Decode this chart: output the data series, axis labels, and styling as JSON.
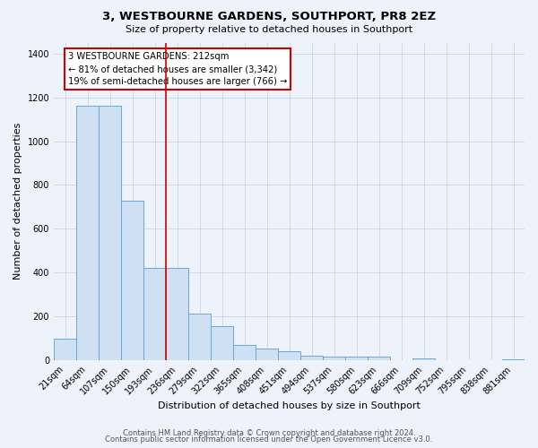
{
  "title": "3, WESTBOURNE GARDENS, SOUTHPORT, PR8 2EZ",
  "subtitle": "Size of property relative to detached houses in Southport",
  "xlabel": "Distribution of detached houses by size in Southport",
  "ylabel": "Number of detached properties",
  "bar_labels": [
    "21sqm",
    "64sqm",
    "107sqm",
    "150sqm",
    "193sqm",
    "236sqm",
    "279sqm",
    "322sqm",
    "365sqm",
    "408sqm",
    "451sqm",
    "494sqm",
    "537sqm",
    "580sqm",
    "623sqm",
    "666sqm",
    "709sqm",
    "752sqm",
    "795sqm",
    "838sqm",
    "881sqm"
  ],
  "bar_values": [
    100,
    1160,
    1160,
    730,
    420,
    420,
    215,
    155,
    70,
    55,
    40,
    20,
    15,
    15,
    15,
    0,
    10,
    0,
    0,
    0,
    5
  ],
  "bar_color": "#cfe0f3",
  "bar_edge_color": "#6aaad4",
  "vline_position": 4.5,
  "vline_color": "#cc0000",
  "annotation_text": "3 WESTBOURNE GARDENS: 212sqm\n← 81% of detached houses are smaller (3,342)\n19% of semi-detached houses are larger (766) →",
  "annotation_box_facecolor": "white",
  "annotation_box_edgecolor": "#cc0000",
  "ylim": [
    0,
    1450
  ],
  "yticks": [
    0,
    200,
    400,
    600,
    800,
    1000,
    1200,
    1400
  ],
  "footer_line1": "Contains HM Land Registry data © Crown copyright and database right 2024.",
  "footer_line2": "Contains public sector information licensed under the Open Government Licence v3.0.",
  "background_color": "#eef2fa",
  "plot_background": "#eef2fa",
  "grid_color": "#c8d0e0",
  "title_fontsize": 9.5,
  "subtitle_fontsize": 8,
  "ylabel_fontsize": 8,
  "xlabel_fontsize": 8,
  "tick_fontsize": 7,
  "footer_fontsize": 6
}
